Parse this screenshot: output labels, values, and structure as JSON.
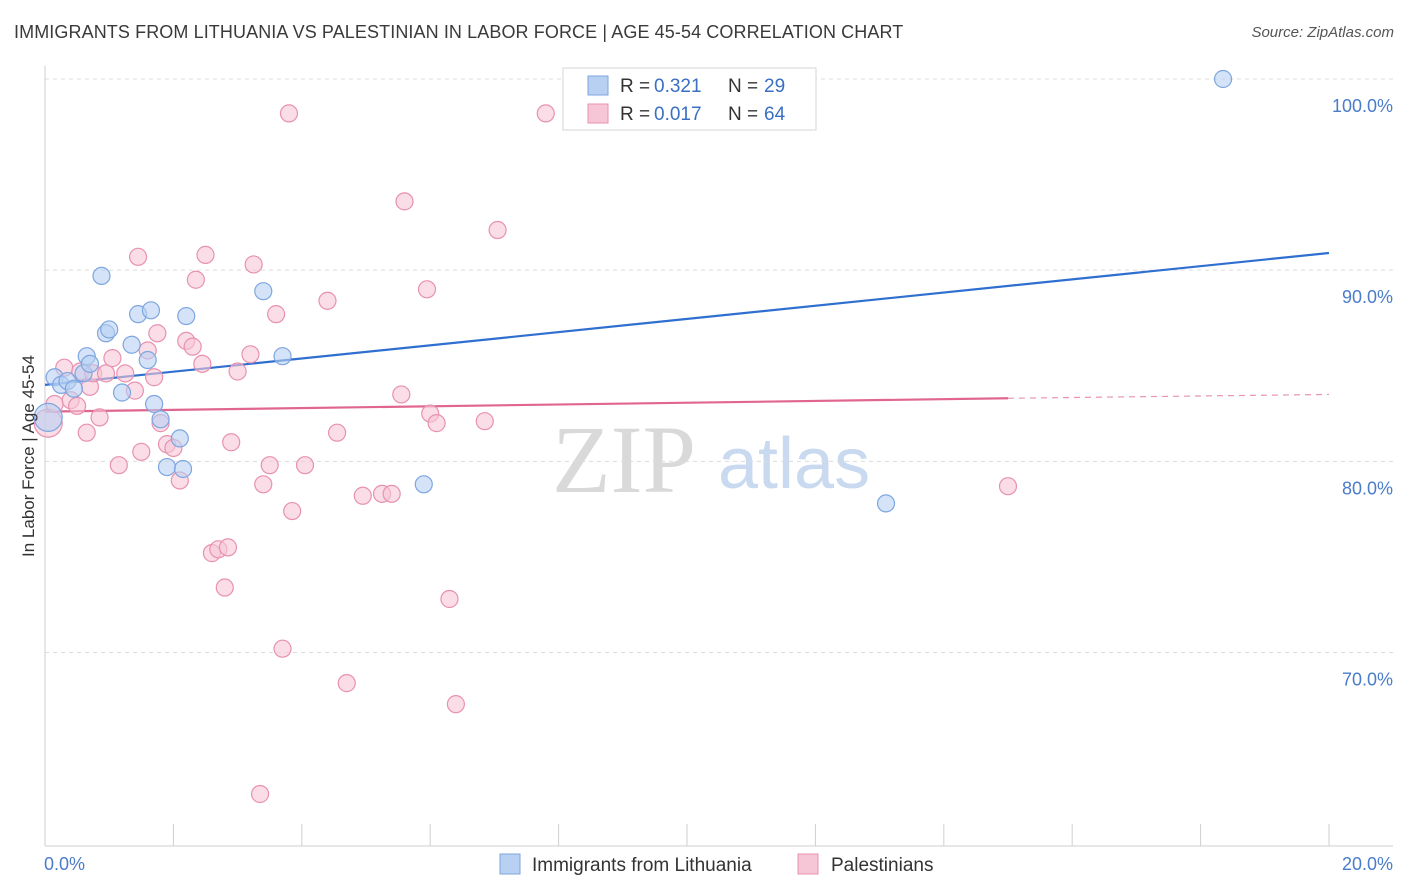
{
  "title": "IMMIGRANTS FROM LITHUANIA VS PALESTINIAN IN LABOR FORCE | AGE 45-54 CORRELATION CHART",
  "source": "Source: ZipAtlas.com",
  "watermark": {
    "zip": "ZIP",
    "atlas": "atlas"
  },
  "colors": {
    "blue_fill": "#b8d0f2",
    "blue_stroke": "#7ea6e0",
    "blue_line": "#2f6fd0",
    "pink_fill": "#f7c6d6",
    "pink_stroke": "#e891b0",
    "pink_line": "#e06690",
    "axis_text": "#4a7cc9",
    "grid": "#dcdcdc"
  },
  "legend": {
    "rows": [
      {
        "r_label": "R =",
        "r_value": "0.321",
        "n_label": "N =",
        "n_value": "29"
      },
      {
        "r_label": "R =",
        "r_value": "0.017",
        "n_label": "N =",
        "n_value": "64"
      }
    ]
  },
  "chart_data": {
    "type": "scatter",
    "title": "IMMIGRANTS FROM LITHUANIA VS PALESTINIAN IN LABOR FORCE | AGE 45-54 CORRELATION CHART",
    "xlabel": "",
    "ylabel": "In Labor Force | Age 45-54",
    "xlim": [
      0,
      20
    ],
    "ylim": [
      60,
      100
    ],
    "x_tick_labels": [
      "0.0%",
      "20.0%"
    ],
    "y_ticks": [
      70,
      80,
      90,
      100
    ],
    "y_tick_labels": [
      "70.0%",
      "80.0%",
      "90.0%",
      "100.0%"
    ],
    "series": [
      {
        "name": "Immigrants from Lithuania",
        "color": "#b8d0f2",
        "trend": {
          "x": [
            0,
            20
          ],
          "y": [
            84.0,
            90.9
          ]
        },
        "points": [
          [
            0.05,
            82.3
          ],
          [
            0.15,
            84.4
          ],
          [
            0.25,
            84.0
          ],
          [
            0.35,
            84.2
          ],
          [
            0.45,
            83.8
          ],
          [
            0.6,
            84.6
          ],
          [
            0.65,
            85.5
          ],
          [
            0.7,
            85.1
          ],
          [
            0.95,
            86.7
          ],
          [
            1.0,
            86.9
          ],
          [
            0.88,
            89.7
          ],
          [
            1.2,
            83.6
          ],
          [
            1.35,
            86.1
          ],
          [
            1.45,
            87.7
          ],
          [
            1.6,
            85.3
          ],
          [
            1.7,
            83.0
          ],
          [
            1.65,
            87.9
          ],
          [
            1.8,
            82.2
          ],
          [
            1.9,
            79.7
          ],
          [
            2.1,
            81.2
          ],
          [
            2.15,
            79.6
          ],
          [
            2.2,
            87.6
          ],
          [
            3.4,
            88.9
          ],
          [
            3.7,
            85.5
          ],
          [
            5.9,
            78.8
          ],
          [
            13.1,
            77.8
          ],
          [
            18.35,
            100.0
          ]
        ],
        "r": "0.321",
        "n": "29"
      },
      {
        "name": "Palestinians",
        "color": "#f7c6d6",
        "trend": {
          "x": [
            0,
            15
          ],
          "y": [
            82.6,
            83.3
          ]
        },
        "trend_dashed": {
          "x": [
            15,
            20
          ],
          "y": [
            83.3,
            83.5
          ]
        },
        "points": [
          [
            0.05,
            82.0
          ],
          [
            0.15,
            83.0
          ],
          [
            0.3,
            84.9
          ],
          [
            0.4,
            83.2
          ],
          [
            0.5,
            82.9
          ],
          [
            0.55,
            84.7
          ],
          [
            0.65,
            81.5
          ],
          [
            0.7,
            83.9
          ],
          [
            0.75,
            84.6
          ],
          [
            0.85,
            82.3
          ],
          [
            0.95,
            84.6
          ],
          [
            1.05,
            85.4
          ],
          [
            1.15,
            79.8
          ],
          [
            1.25,
            84.6
          ],
          [
            1.4,
            83.7
          ],
          [
            1.45,
            90.7
          ],
          [
            1.5,
            80.5
          ],
          [
            1.6,
            85.8
          ],
          [
            1.7,
            84.4
          ],
          [
            1.75,
            86.7
          ],
          [
            1.8,
            82.0
          ],
          [
            1.9,
            80.9
          ],
          [
            2.0,
            80.7
          ],
          [
            2.1,
            79.0
          ],
          [
            2.2,
            86.3
          ],
          [
            2.3,
            86.0
          ],
          [
            2.35,
            89.5
          ],
          [
            2.45,
            85.1
          ],
          [
            2.5,
            90.8
          ],
          [
            2.6,
            75.2
          ],
          [
            2.7,
            75.4
          ],
          [
            2.8,
            73.4
          ],
          [
            2.85,
            75.5
          ],
          [
            2.9,
            81.0
          ],
          [
            3.0,
            84.7
          ],
          [
            3.2,
            85.6
          ],
          [
            3.25,
            90.3
          ],
          [
            3.4,
            78.8
          ],
          [
            3.5,
            79.8
          ],
          [
            3.6,
            87.7
          ],
          [
            3.7,
            70.2
          ],
          [
            3.85,
            77.4
          ],
          [
            3.8,
            98.2
          ],
          [
            4.05,
            79.8
          ],
          [
            4.4,
            88.4
          ],
          [
            4.55,
            81.5
          ],
          [
            4.7,
            68.4
          ],
          [
            4.95,
            78.2
          ],
          [
            5.25,
            78.3
          ],
          [
            5.4,
            78.3
          ],
          [
            5.55,
            83.5
          ],
          [
            5.6,
            93.6
          ],
          [
            5.95,
            89.0
          ],
          [
            6.0,
            82.5
          ],
          [
            6.1,
            82.0
          ],
          [
            6.3,
            72.8
          ],
          [
            6.4,
            67.3
          ],
          [
            6.85,
            82.1
          ],
          [
            7.05,
            92.1
          ],
          [
            7.8,
            98.2
          ],
          [
            15.0,
            78.7
          ],
          [
            3.35,
            62.6
          ]
        ],
        "r": "0.017",
        "n": "64"
      }
    ]
  }
}
